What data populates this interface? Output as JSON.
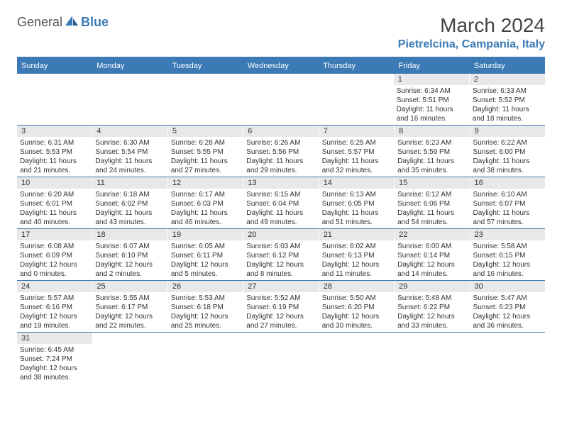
{
  "logo": {
    "general": "General",
    "blue": "Blue"
  },
  "header": {
    "title": "March 2024",
    "location": "Pietrelcina, Campania, Italy"
  },
  "colors": {
    "accent": "#3b7ab5",
    "daynum_bg": "#e8e8e8",
    "text": "#333333"
  },
  "weekdays": [
    "Sunday",
    "Monday",
    "Tuesday",
    "Wednesday",
    "Thursday",
    "Friday",
    "Saturday"
  ],
  "weeks": [
    [
      null,
      null,
      null,
      null,
      null,
      {
        "n": "1",
        "sr": "Sunrise: 6:34 AM",
        "ss": "Sunset: 5:51 PM",
        "d1": "Daylight: 11 hours",
        "d2": "and 16 minutes."
      },
      {
        "n": "2",
        "sr": "Sunrise: 6:33 AM",
        "ss": "Sunset: 5:52 PM",
        "d1": "Daylight: 11 hours",
        "d2": "and 18 minutes."
      }
    ],
    [
      {
        "n": "3",
        "sr": "Sunrise: 6:31 AM",
        "ss": "Sunset: 5:53 PM",
        "d1": "Daylight: 11 hours",
        "d2": "and 21 minutes."
      },
      {
        "n": "4",
        "sr": "Sunrise: 6:30 AM",
        "ss": "Sunset: 5:54 PM",
        "d1": "Daylight: 11 hours",
        "d2": "and 24 minutes."
      },
      {
        "n": "5",
        "sr": "Sunrise: 6:28 AM",
        "ss": "Sunset: 5:55 PM",
        "d1": "Daylight: 11 hours",
        "d2": "and 27 minutes."
      },
      {
        "n": "6",
        "sr": "Sunrise: 6:26 AM",
        "ss": "Sunset: 5:56 PM",
        "d1": "Daylight: 11 hours",
        "d2": "and 29 minutes."
      },
      {
        "n": "7",
        "sr": "Sunrise: 6:25 AM",
        "ss": "Sunset: 5:57 PM",
        "d1": "Daylight: 11 hours",
        "d2": "and 32 minutes."
      },
      {
        "n": "8",
        "sr": "Sunrise: 6:23 AM",
        "ss": "Sunset: 5:59 PM",
        "d1": "Daylight: 11 hours",
        "d2": "and 35 minutes."
      },
      {
        "n": "9",
        "sr": "Sunrise: 6:22 AM",
        "ss": "Sunset: 6:00 PM",
        "d1": "Daylight: 11 hours",
        "d2": "and 38 minutes."
      }
    ],
    [
      {
        "n": "10",
        "sr": "Sunrise: 6:20 AM",
        "ss": "Sunset: 6:01 PM",
        "d1": "Daylight: 11 hours",
        "d2": "and 40 minutes."
      },
      {
        "n": "11",
        "sr": "Sunrise: 6:18 AM",
        "ss": "Sunset: 6:02 PM",
        "d1": "Daylight: 11 hours",
        "d2": "and 43 minutes."
      },
      {
        "n": "12",
        "sr": "Sunrise: 6:17 AM",
        "ss": "Sunset: 6:03 PM",
        "d1": "Daylight: 11 hours",
        "d2": "and 46 minutes."
      },
      {
        "n": "13",
        "sr": "Sunrise: 6:15 AM",
        "ss": "Sunset: 6:04 PM",
        "d1": "Daylight: 11 hours",
        "d2": "and 49 minutes."
      },
      {
        "n": "14",
        "sr": "Sunrise: 6:13 AM",
        "ss": "Sunset: 6:05 PM",
        "d1": "Daylight: 11 hours",
        "d2": "and 51 minutes."
      },
      {
        "n": "15",
        "sr": "Sunrise: 6:12 AM",
        "ss": "Sunset: 6:06 PM",
        "d1": "Daylight: 11 hours",
        "d2": "and 54 minutes."
      },
      {
        "n": "16",
        "sr": "Sunrise: 6:10 AM",
        "ss": "Sunset: 6:07 PM",
        "d1": "Daylight: 11 hours",
        "d2": "and 57 minutes."
      }
    ],
    [
      {
        "n": "17",
        "sr": "Sunrise: 6:08 AM",
        "ss": "Sunset: 6:09 PM",
        "d1": "Daylight: 12 hours",
        "d2": "and 0 minutes."
      },
      {
        "n": "18",
        "sr": "Sunrise: 6:07 AM",
        "ss": "Sunset: 6:10 PM",
        "d1": "Daylight: 12 hours",
        "d2": "and 2 minutes."
      },
      {
        "n": "19",
        "sr": "Sunrise: 6:05 AM",
        "ss": "Sunset: 6:11 PM",
        "d1": "Daylight: 12 hours",
        "d2": "and 5 minutes."
      },
      {
        "n": "20",
        "sr": "Sunrise: 6:03 AM",
        "ss": "Sunset: 6:12 PM",
        "d1": "Daylight: 12 hours",
        "d2": "and 8 minutes."
      },
      {
        "n": "21",
        "sr": "Sunrise: 6:02 AM",
        "ss": "Sunset: 6:13 PM",
        "d1": "Daylight: 12 hours",
        "d2": "and 11 minutes."
      },
      {
        "n": "22",
        "sr": "Sunrise: 6:00 AM",
        "ss": "Sunset: 6:14 PM",
        "d1": "Daylight: 12 hours",
        "d2": "and 14 minutes."
      },
      {
        "n": "23",
        "sr": "Sunrise: 5:58 AM",
        "ss": "Sunset: 6:15 PM",
        "d1": "Daylight: 12 hours",
        "d2": "and 16 minutes."
      }
    ],
    [
      {
        "n": "24",
        "sr": "Sunrise: 5:57 AM",
        "ss": "Sunset: 6:16 PM",
        "d1": "Daylight: 12 hours",
        "d2": "and 19 minutes."
      },
      {
        "n": "25",
        "sr": "Sunrise: 5:55 AM",
        "ss": "Sunset: 6:17 PM",
        "d1": "Daylight: 12 hours",
        "d2": "and 22 minutes."
      },
      {
        "n": "26",
        "sr": "Sunrise: 5:53 AM",
        "ss": "Sunset: 6:18 PM",
        "d1": "Daylight: 12 hours",
        "d2": "and 25 minutes."
      },
      {
        "n": "27",
        "sr": "Sunrise: 5:52 AM",
        "ss": "Sunset: 6:19 PM",
        "d1": "Daylight: 12 hours",
        "d2": "and 27 minutes."
      },
      {
        "n": "28",
        "sr": "Sunrise: 5:50 AM",
        "ss": "Sunset: 6:20 PM",
        "d1": "Daylight: 12 hours",
        "d2": "and 30 minutes."
      },
      {
        "n": "29",
        "sr": "Sunrise: 5:48 AM",
        "ss": "Sunset: 6:22 PM",
        "d1": "Daylight: 12 hours",
        "d2": "and 33 minutes."
      },
      {
        "n": "30",
        "sr": "Sunrise: 5:47 AM",
        "ss": "Sunset: 6:23 PM",
        "d1": "Daylight: 12 hours",
        "d2": "and 36 minutes."
      }
    ],
    [
      {
        "n": "31",
        "sr": "Sunrise: 6:45 AM",
        "ss": "Sunset: 7:24 PM",
        "d1": "Daylight: 12 hours",
        "d2": "and 38 minutes."
      },
      null,
      null,
      null,
      null,
      null,
      null
    ]
  ]
}
